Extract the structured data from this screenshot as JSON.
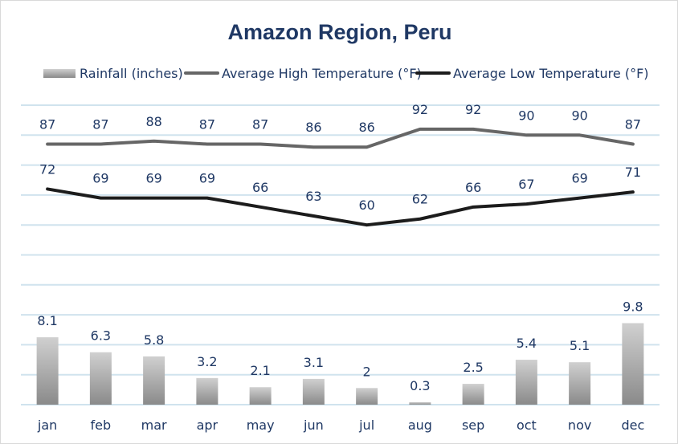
{
  "chart_data": {
    "type": "bar+line",
    "title": "Amazon Region, Peru",
    "categories": [
      "jan",
      "feb",
      "mar",
      "apr",
      "may",
      "jun",
      "jul",
      "aug",
      "sep",
      "oct",
      "nov",
      "dec"
    ],
    "series": [
      {
        "name": "Rainfall (inches)",
        "kind": "bar",
        "axis": "rainfall",
        "values": [
          8.1,
          6.3,
          5.8,
          3.2,
          2.1,
          3.1,
          2,
          0.3,
          2.5,
          5.4,
          5.1,
          9.8
        ],
        "labels": [
          "8.1",
          "6.3",
          "5.8",
          "3.2",
          "2.1",
          "3.1",
          "2",
          "0.3",
          "2.5",
          "5.4",
          "5.1",
          "9.8"
        ]
      },
      {
        "name": "Average High Temperature (°F)",
        "kind": "line",
        "axis": "temperature",
        "values": [
          87,
          87,
          88,
          87,
          87,
          86,
          86,
          92,
          92,
          90,
          90,
          87
        ],
        "labels": [
          "87",
          "87",
          "88",
          "87",
          "87",
          "86",
          "86",
          "92",
          "92",
          "90",
          "90",
          "87"
        ]
      },
      {
        "name": "Average Low Temperature (°F)",
        "kind": "line",
        "axis": "temperature",
        "values": [
          72,
          69,
          69,
          69,
          66,
          63,
          60,
          62,
          66,
          67,
          69,
          71
        ],
        "labels": [
          "72",
          "69",
          "69",
          "69",
          "66",
          "63",
          "60",
          "62",
          "66",
          "67",
          "69",
          "71"
        ]
      }
    ],
    "axes": {
      "rainfall": {
        "min": 0,
        "max": 36
      },
      "temperature": {
        "min": 0,
        "max": 100
      }
    },
    "xlabel": "",
    "ylabel": "",
    "grid": true,
    "legend_position": "top",
    "colors": {
      "title": "#1f3864",
      "label_text": "#1f3864",
      "grid": "#d0e3ee",
      "bar_light": "#d0d0d0",
      "bar_dark": "#8a8a8a",
      "high_line": "#666666",
      "low_line": "#1c1c1c",
      "border": "#d9d9d9"
    }
  }
}
